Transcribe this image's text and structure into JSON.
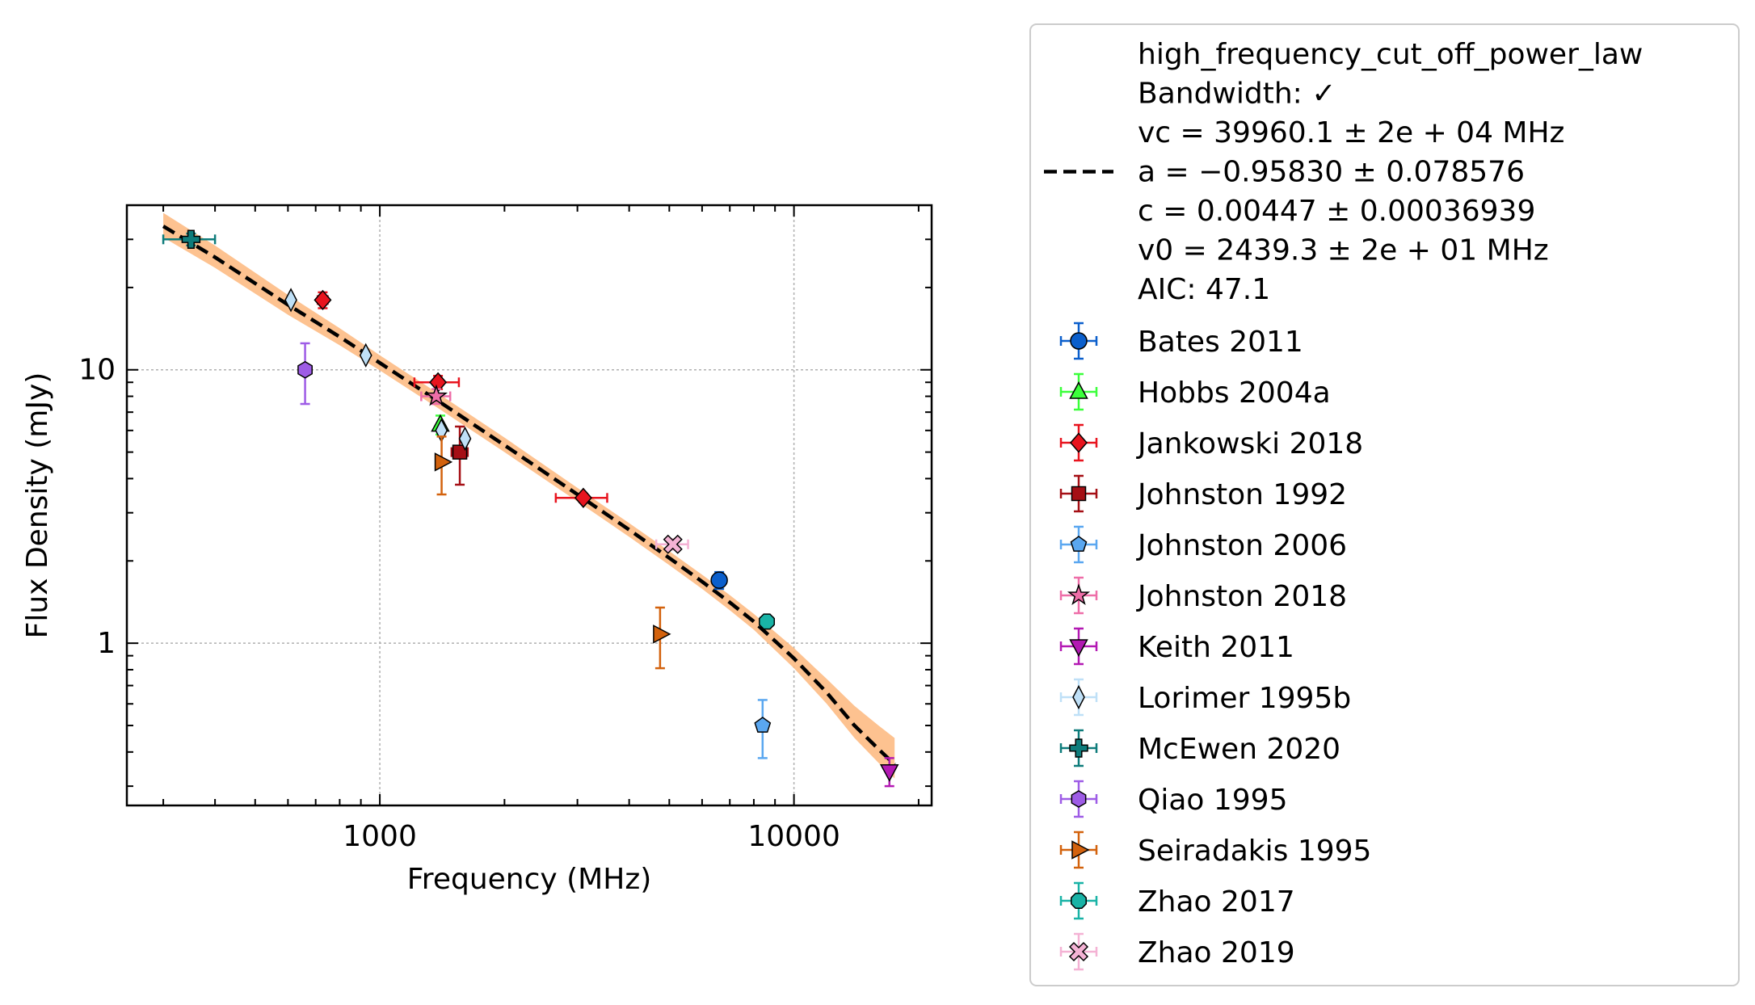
{
  "chart_data": {
    "type": "scatter",
    "xscale": "log",
    "yscale": "log",
    "xlim": [
      245,
      21500
    ],
    "ylim": [
      0.255,
      40
    ],
    "xlabel": "Frequency (MHz)",
    "ylabel": "Flux Density (mJy)",
    "xticks": [
      {
        "value": 1000,
        "label": "1000"
      },
      {
        "value": 10000,
        "label": "10000"
      }
    ],
    "yticks": [
      {
        "value": 1,
        "label": "1"
      },
      {
        "value": 10,
        "label": "10"
      }
    ],
    "grid": true,
    "legend_position": "outside-right",
    "fit": {
      "model": "high_frequency_cut_off_power_law",
      "lines": [
        "high_frequency_cut_off_power_law",
        "Bandwidth: ✓",
        "vc = 39960.1 ± 2e + 04 MHz",
        "a = −0.95830 ± 0.078576",
        "c = 0.00447 ± 0.00036939",
        "v0 = 2439.3 ± 2e + 01 MHz",
        "AIC: 47.1"
      ],
      "vc": 39960.1,
      "a": -0.9583,
      "c": 0.00447,
      "v0": 2439.3,
      "line_color": "#000000",
      "band_color": "#fdbb84",
      "curve": [
        [
          300,
          33.5
        ],
        [
          400,
          25.8
        ],
        [
          600,
          17.3
        ],
        [
          800,
          13.2
        ],
        [
          1000,
          10.6
        ],
        [
          1400,
          7.6
        ],
        [
          2000,
          5.3
        ],
        [
          3000,
          3.5
        ],
        [
          4000,
          2.6
        ],
        [
          5000,
          2.05
        ],
        [
          6000,
          1.68
        ],
        [
          7000,
          1.41
        ],
        [
          8000,
          1.2
        ],
        [
          10000,
          0.88
        ],
        [
          12000,
          0.66
        ],
        [
          14000,
          0.5
        ],
        [
          16000,
          0.41
        ],
        [
          17500,
          0.36
        ]
      ],
      "band_upper": [
        [
          300,
          37.5
        ],
        [
          400,
          28.5
        ],
        [
          600,
          18.8
        ],
        [
          800,
          14.2
        ],
        [
          1000,
          11.3
        ],
        [
          1400,
          8.1
        ],
        [
          2000,
          5.65
        ],
        [
          3000,
          3.7
        ],
        [
          4000,
          2.75
        ],
        [
          5000,
          2.17
        ],
        [
          6000,
          1.78
        ],
        [
          7000,
          1.5
        ],
        [
          8000,
          1.28
        ],
        [
          10000,
          0.96
        ],
        [
          12000,
          0.74
        ],
        [
          14000,
          0.59
        ],
        [
          16000,
          0.5
        ],
        [
          17500,
          0.45
        ]
      ],
      "band_lower": [
        [
          300,
          30.5
        ],
        [
          400,
          23.6
        ],
        [
          600,
          15.9
        ],
        [
          800,
          12.3
        ],
        [
          1000,
          9.95
        ],
        [
          1400,
          7.15
        ],
        [
          2000,
          5.0
        ],
        [
          3000,
          3.3
        ],
        [
          4000,
          2.45
        ],
        [
          5000,
          1.93
        ],
        [
          6000,
          1.58
        ],
        [
          7000,
          1.32
        ],
        [
          8000,
          1.12
        ],
        [
          10000,
          0.81
        ],
        [
          12000,
          0.6
        ],
        [
          14000,
          0.45
        ],
        [
          16000,
          0.365
        ],
        [
          17500,
          0.32
        ]
      ]
    },
    "series": [
      {
        "name": "Bates 2011",
        "marker": "circle",
        "color": "#0b5fcc",
        "points": [
          {
            "x": 6600,
            "y": 1.7,
            "xerr": [
              0,
              0
            ],
            "yerr": [
              0.12,
              0.12
            ]
          }
        ]
      },
      {
        "name": "Hobbs 2004a",
        "marker": "triangle-up",
        "color": "#3bff3b",
        "points": [
          {
            "x": 1400,
            "y": 6.3,
            "xerr": [
              0,
              0
            ],
            "yerr": [
              0.5,
              0.5
            ]
          }
        ]
      },
      {
        "name": "Jankowski 2018",
        "marker": "diamond",
        "color": "#e8141e",
        "points": [
          {
            "x": 728,
            "y": 18,
            "xerr": [
              20,
              20
            ],
            "yerr": [
              1.2,
              1.2
            ]
          },
          {
            "x": 1382,
            "y": 9.0,
            "xerr": [
              170,
              170
            ],
            "yerr": [
              0.5,
              0.5
            ]
          },
          {
            "x": 3100,
            "y": 3.4,
            "xerr": [
              440,
              440
            ],
            "yerr": [
              0.12,
              0.12
            ]
          }
        ]
      },
      {
        "name": "Johnston 1992",
        "marker": "square",
        "color": "#a50f15",
        "points": [
          {
            "x": 1560,
            "y": 5.0,
            "xerr": [
              70,
              70
            ],
            "yerr": [
              1.2,
              1.2
            ]
          }
        ]
      },
      {
        "name": "Johnston 2006",
        "marker": "pentagon",
        "color": "#5aa7f0",
        "points": [
          {
            "x": 8400,
            "y": 0.5,
            "xerr": [
              0,
              0
            ],
            "yerr": [
              0.12,
              0.12
            ]
          }
        ]
      },
      {
        "name": "Johnston 2018",
        "marker": "star",
        "color": "#ee6ea8",
        "points": [
          {
            "x": 1369,
            "y": 8.0,
            "xerr": [
              110,
              110
            ],
            "yerr": [
              0.5,
              0.5
            ]
          }
        ]
      },
      {
        "name": "Keith 2011",
        "marker": "triangle-down",
        "color": "#b319b3",
        "points": [
          {
            "x": 17000,
            "y": 0.34,
            "xerr": [
              0,
              0
            ],
            "yerr": [
              0.04,
              0.04
            ]
          }
        ]
      },
      {
        "name": "Lorimer 1995b",
        "marker": "thin-diamond",
        "color": "#bfe0f7",
        "points": [
          {
            "x": 610,
            "y": 18,
            "xerr": [
              0,
              0
            ],
            "yerr": [
              0,
              0
            ]
          },
          {
            "x": 925,
            "y": 11.3,
            "xerr": [
              0,
              0
            ],
            "yerr": [
              0,
              0
            ]
          },
          {
            "x": 1408,
            "y": 6.0,
            "xerr": [
              0,
              0
            ],
            "yerr": [
              0,
              0
            ]
          },
          {
            "x": 1606,
            "y": 5.6,
            "xerr": [
              0,
              0
            ],
            "yerr": [
              0,
              0
            ]
          }
        ]
      },
      {
        "name": "McEwen 2020",
        "marker": "plus",
        "color": "#0e7c7b",
        "points": [
          {
            "x": 350,
            "y": 30,
            "xerr": [
              50,
              50
            ],
            "yerr": [
              1.5,
              1.5
            ]
          }
        ]
      },
      {
        "name": "Qiao 1995",
        "marker": "hexagon",
        "color": "#9e5ce6",
        "points": [
          {
            "x": 660,
            "y": 10,
            "xerr": [
              0,
              0
            ],
            "yerr": [
              2.5,
              2.5
            ]
          }
        ]
      },
      {
        "name": "Seiradakis 1995",
        "marker": "triangle-right",
        "color": "#d3620d",
        "points": [
          {
            "x": 1410,
            "y": 4.6,
            "xerr": [
              0,
              0
            ],
            "yerr": [
              1.1,
              1.1
            ]
          },
          {
            "x": 4750,
            "y": 1.08,
            "xerr": [
              0,
              0
            ],
            "yerr": [
              0.27,
              0.27
            ]
          }
        ]
      },
      {
        "name": "Zhao 2017",
        "marker": "octagon",
        "color": "#19b3a6",
        "points": [
          {
            "x": 8600,
            "y": 1.2,
            "xerr": [
              300,
              300
            ],
            "yerr": [
              0.05,
              0.05
            ]
          }
        ]
      },
      {
        "name": "Zhao 2019",
        "marker": "x-filled",
        "color": "#f4b2d4",
        "points": [
          {
            "x": 5100,
            "y": 2.3,
            "xerr": [
              450,
              450
            ],
            "yerr": [
              0.1,
              0.1
            ]
          }
        ]
      }
    ]
  }
}
